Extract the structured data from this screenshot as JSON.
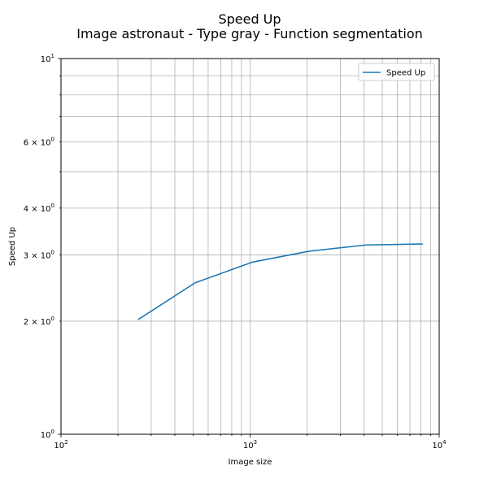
{
  "chart_data": {
    "type": "line",
    "title": "Speed Up",
    "subtitle": "Image astronaut - Type gray - Function segmentation",
    "xlabel": "Image size",
    "ylabel": "Speed Up",
    "xscale": "log",
    "yscale": "log",
    "xlim": [
      100,
      10000
    ],
    "ylim": [
      1,
      10
    ],
    "grid": "both-major-minor",
    "legend_position": "top-right",
    "x_major_ticks": [
      {
        "value": 100,
        "base": "10",
        "exp": "2"
      },
      {
        "value": 1000,
        "base": "10",
        "exp": "3"
      },
      {
        "value": 10000,
        "base": "10",
        "exp": "4"
      }
    ],
    "y_tick_labels": [
      {
        "value": 1,
        "base": "10",
        "exp": "0"
      },
      {
        "value": 2,
        "base": "2 × 10",
        "exp": "0"
      },
      {
        "value": 3,
        "base": "3 × 10",
        "exp": "0"
      },
      {
        "value": 4,
        "base": "4 × 10",
        "exp": "0"
      },
      {
        "value": 6,
        "base": "6 × 10",
        "exp": "0"
      },
      {
        "value": 10,
        "base": "10",
        "exp": "1"
      }
    ],
    "series": [
      {
        "name": "Speed Up",
        "color": "#1f77b4",
        "x": [
          256,
          512,
          1024,
          2048,
          4096,
          8192
        ],
        "y": [
          2.02,
          2.53,
          2.87,
          3.07,
          3.19,
          3.21
        ]
      }
    ]
  }
}
